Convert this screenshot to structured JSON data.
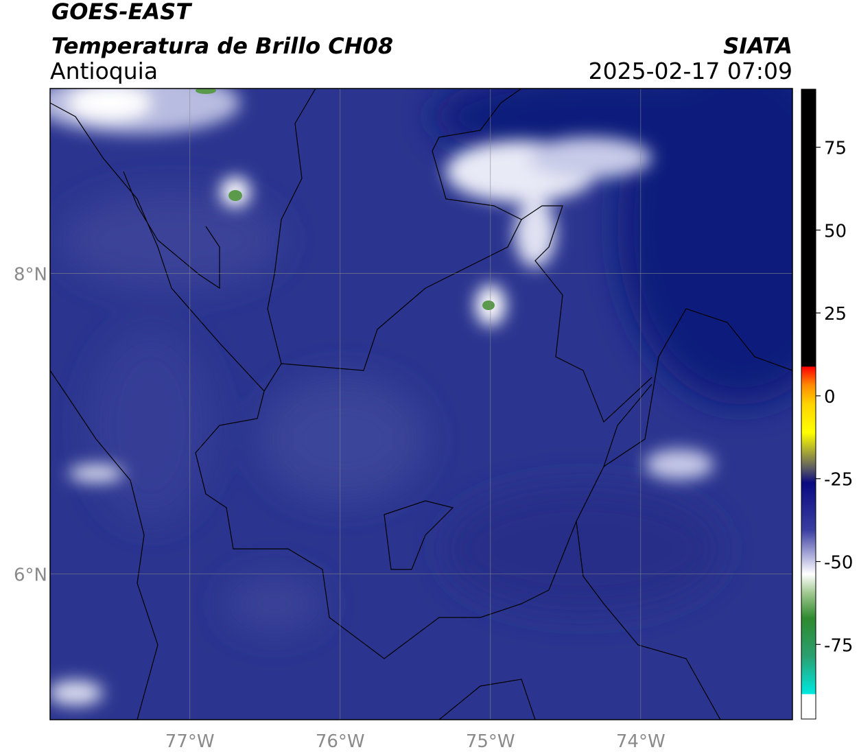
{
  "header": {
    "satellite": "GOES-EAST",
    "product": "Temperatura de Brillo CH08",
    "region": "Antioquia",
    "source": "SIATA",
    "datetime": "2025-02-17 07:09"
  },
  "map": {
    "xlim": [
      -77.93,
      -72.99
    ],
    "ylim": [
      5.03,
      9.23
    ],
    "xticks": [
      {
        "value": -77,
        "label": "77°W"
      },
      {
        "value": -76,
        "label": "76°W"
      },
      {
        "value": -75,
        "label": "75°W"
      },
      {
        "value": -74,
        "label": "74°W"
      }
    ],
    "yticks": [
      {
        "value": 6,
        "label": "6°N"
      },
      {
        "value": 8,
        "label": "8°N"
      }
    ],
    "grid": true
  },
  "colorbar": {
    "lim": [
      -97.5,
      92.5
    ],
    "ticks": [
      -75,
      -50,
      -25,
      0,
      25,
      50,
      75
    ]
  }
}
